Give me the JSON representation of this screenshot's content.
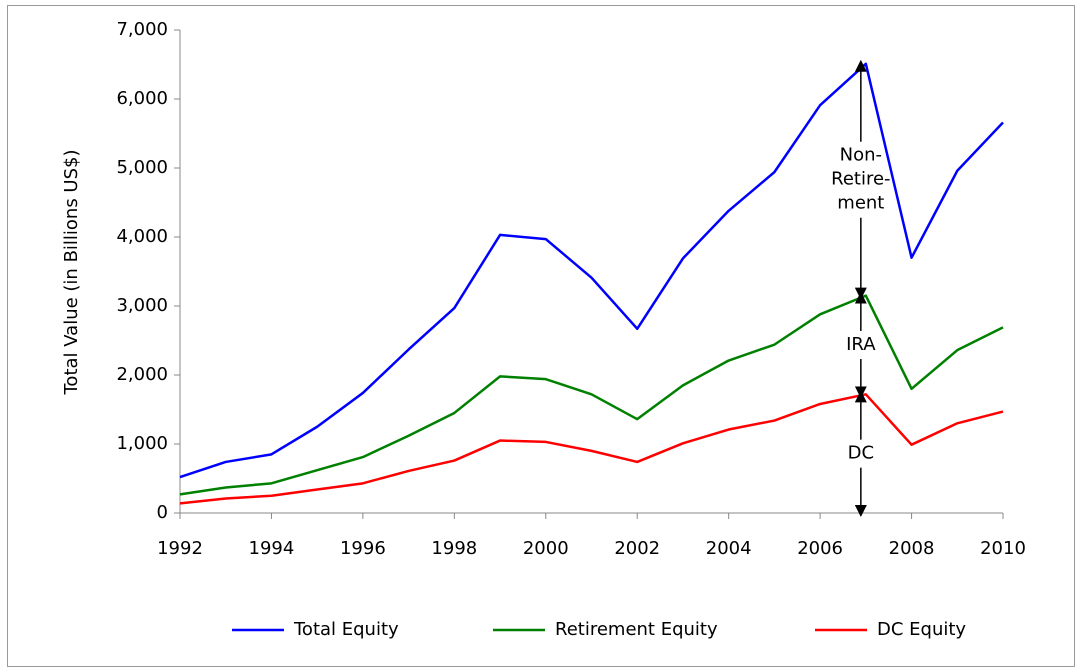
{
  "chart_data": {
    "type": "line",
    "y_label": "Total Value (in Billions US$)",
    "x": [
      1992,
      1993,
      1994,
      1995,
      1996,
      1997,
      1998,
      1999,
      2000,
      2001,
      2002,
      2003,
      2004,
      2005,
      2006,
      2007,
      2008,
      2009,
      2010
    ],
    "series": [
      {
        "name": "Total Equity",
        "color": "#0000ff",
        "values": [
          520,
          740,
          850,
          1250,
          1740,
          2370,
          2970,
          4030,
          3970,
          3410,
          2670,
          3690,
          4380,
          4940,
          5910,
          6510,
          3700,
          4960,
          5660
        ]
      },
      {
        "name": "Retirement Equity",
        "color": "#008000",
        "values": [
          270,
          370,
          430,
          620,
          810,
          1120,
          1450,
          1980,
          1940,
          1720,
          1360,
          1850,
          2210,
          2440,
          2880,
          3150,
          1800,
          2360,
          2690
        ]
      },
      {
        "name": "DC Equity",
        "color": "#ff0000",
        "values": [
          140,
          210,
          250,
          340,
          430,
          610,
          760,
          1050,
          1030,
          900,
          740,
          1010,
          1210,
          1340,
          1580,
          1720,
          990,
          1300,
          1470
        ]
      }
    ],
    "xlim": [
      1992,
      2010
    ],
    "xticks": [
      1992,
      1994,
      1996,
      1998,
      2000,
      2002,
      2004,
      2006,
      2008,
      2010
    ],
    "ylim": [
      0,
      7000
    ],
    "yticks": [
      0,
      {
        "value": 1000,
        "label": "1,000"
      },
      {
        "value": 2000,
        "label": "2,000"
      },
      {
        "value": 3000,
        "label": "3,000"
      },
      {
        "value": 4000,
        "label": "4,000"
      },
      {
        "value": 5000,
        "label": "5,000"
      },
      {
        "value": 6000,
        "label": "6,000"
      },
      {
        "value": 7000,
        "label": "7,000"
      }
    ],
    "grid": false,
    "legend": "bottom",
    "annotations": [
      [
        "Non-",
        "Retire-",
        "ment"
      ],
      [
        "IRA"
      ],
      [
        "DC"
      ]
    ]
  }
}
